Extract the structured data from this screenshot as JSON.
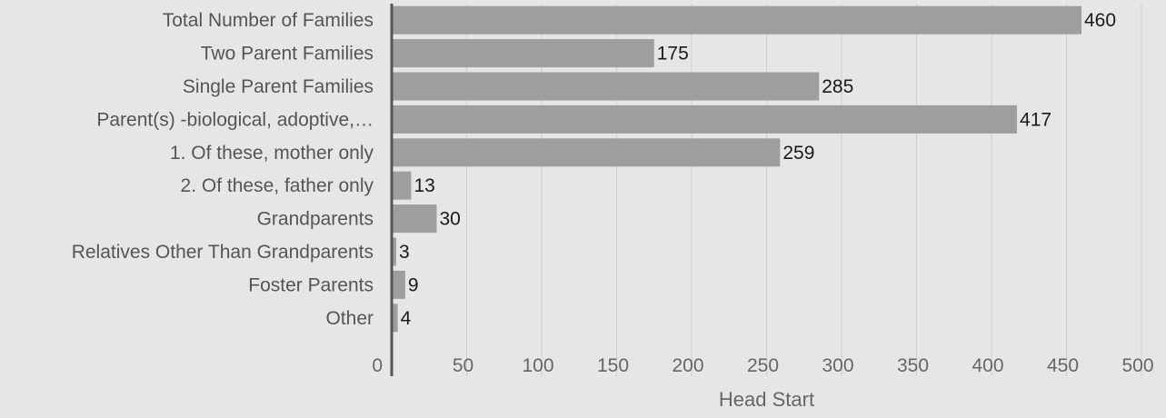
{
  "chart_data": {
    "type": "bar",
    "orientation": "horizontal",
    "categories": [
      "Total Number of Families",
      "Two Parent Families",
      "Single Parent Families",
      "Parent(s) -biological, adoptive,…",
      "1. Of these, mother only",
      "2. Of these, father only",
      "Grandparents",
      "Relatives Other Than Grandparents",
      "Foster Parents",
      "Other"
    ],
    "series": [
      {
        "name": "Head Start",
        "values": [
          460,
          175,
          285,
          417,
          259,
          13,
          30,
          3,
          9,
          4
        ],
        "color": "#9e9e9e"
      }
    ],
    "xlabel": "Head Start",
    "ylabel": "",
    "xlim": [
      0,
      500
    ],
    "ticks": [
      0,
      50,
      100,
      150,
      200,
      250,
      300,
      350,
      400,
      450,
      500
    ],
    "grid": true,
    "legend": "none",
    "data_labels": true
  },
  "colors": {
    "background": "#e6e6e6",
    "bar": "#9e9e9e",
    "grid": "#cfcfcf",
    "axis": "#555555"
  }
}
